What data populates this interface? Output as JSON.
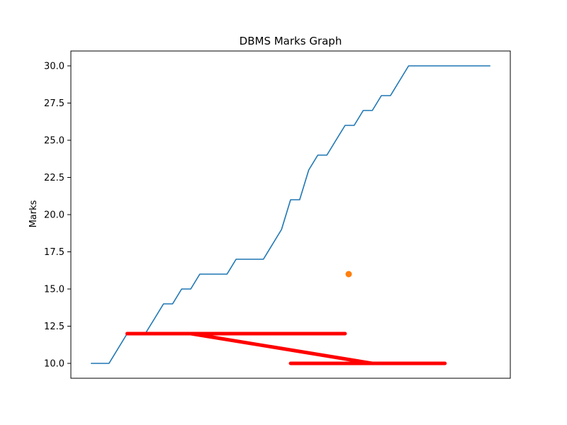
{
  "chart_data": {
    "type": "line",
    "title": "DBMS Marks Graph",
    "xlabel": "",
    "ylabel": "Marks",
    "x_ticks_visible": false,
    "ylim": [
      9.0,
      31.0
    ],
    "xlim": [
      -1.1,
      23.1
    ],
    "yticks": [
      10.0,
      12.5,
      15.0,
      17.5,
      20.0,
      22.5,
      25.0,
      27.5,
      30.0
    ],
    "ytick_labels": [
      "10.0",
      "12.5",
      "15.0",
      "17.5",
      "20.0",
      "22.5",
      "25.0",
      "27.5",
      "30.0"
    ],
    "grid": false,
    "legend": "none",
    "series": [
      {
        "kind": "line",
        "color": "#1f77b4",
        "x": [
          0,
          0.5,
          1,
          1.5,
          2,
          2.5,
          3,
          3.5,
          4,
          4.5,
          5,
          5.5,
          6,
          6.5,
          7,
          7.5,
          8,
          8.5,
          9,
          9.5,
          10,
          10.5,
          11,
          11.5,
          12,
          12.5,
          13,
          13.5,
          14,
          14.5,
          15,
          15.5,
          16,
          16.5,
          17,
          17.5,
          18,
          18.5,
          19,
          19.5,
          20,
          20.5,
          21,
          21.5,
          22
        ],
        "y": [
          10,
          10,
          10,
          11,
          12,
          12,
          12,
          13,
          14,
          14,
          15,
          15,
          16,
          16,
          16,
          16,
          17,
          17,
          17,
          17,
          18,
          19,
          21,
          21,
          23,
          24,
          24,
          25,
          26,
          26,
          27,
          27,
          28,
          28,
          29,
          30,
          30,
          30,
          30,
          30,
          30,
          30,
          30,
          30,
          30
        ]
      },
      {
        "kind": "scatter",
        "color": "#ff7f0e",
        "x": [
          14.2
        ],
        "y": [
          16
        ]
      },
      {
        "kind": "thick-line",
        "color": "#ff0000",
        "x": [
          2.0,
          5.5,
          14.0,
          2.0,
          5.5,
          15.5,
          19.5,
          11.0
        ],
        "y": [
          12,
          12,
          12,
          12,
          12,
          10,
          10,
          10
        ]
      }
    ]
  }
}
